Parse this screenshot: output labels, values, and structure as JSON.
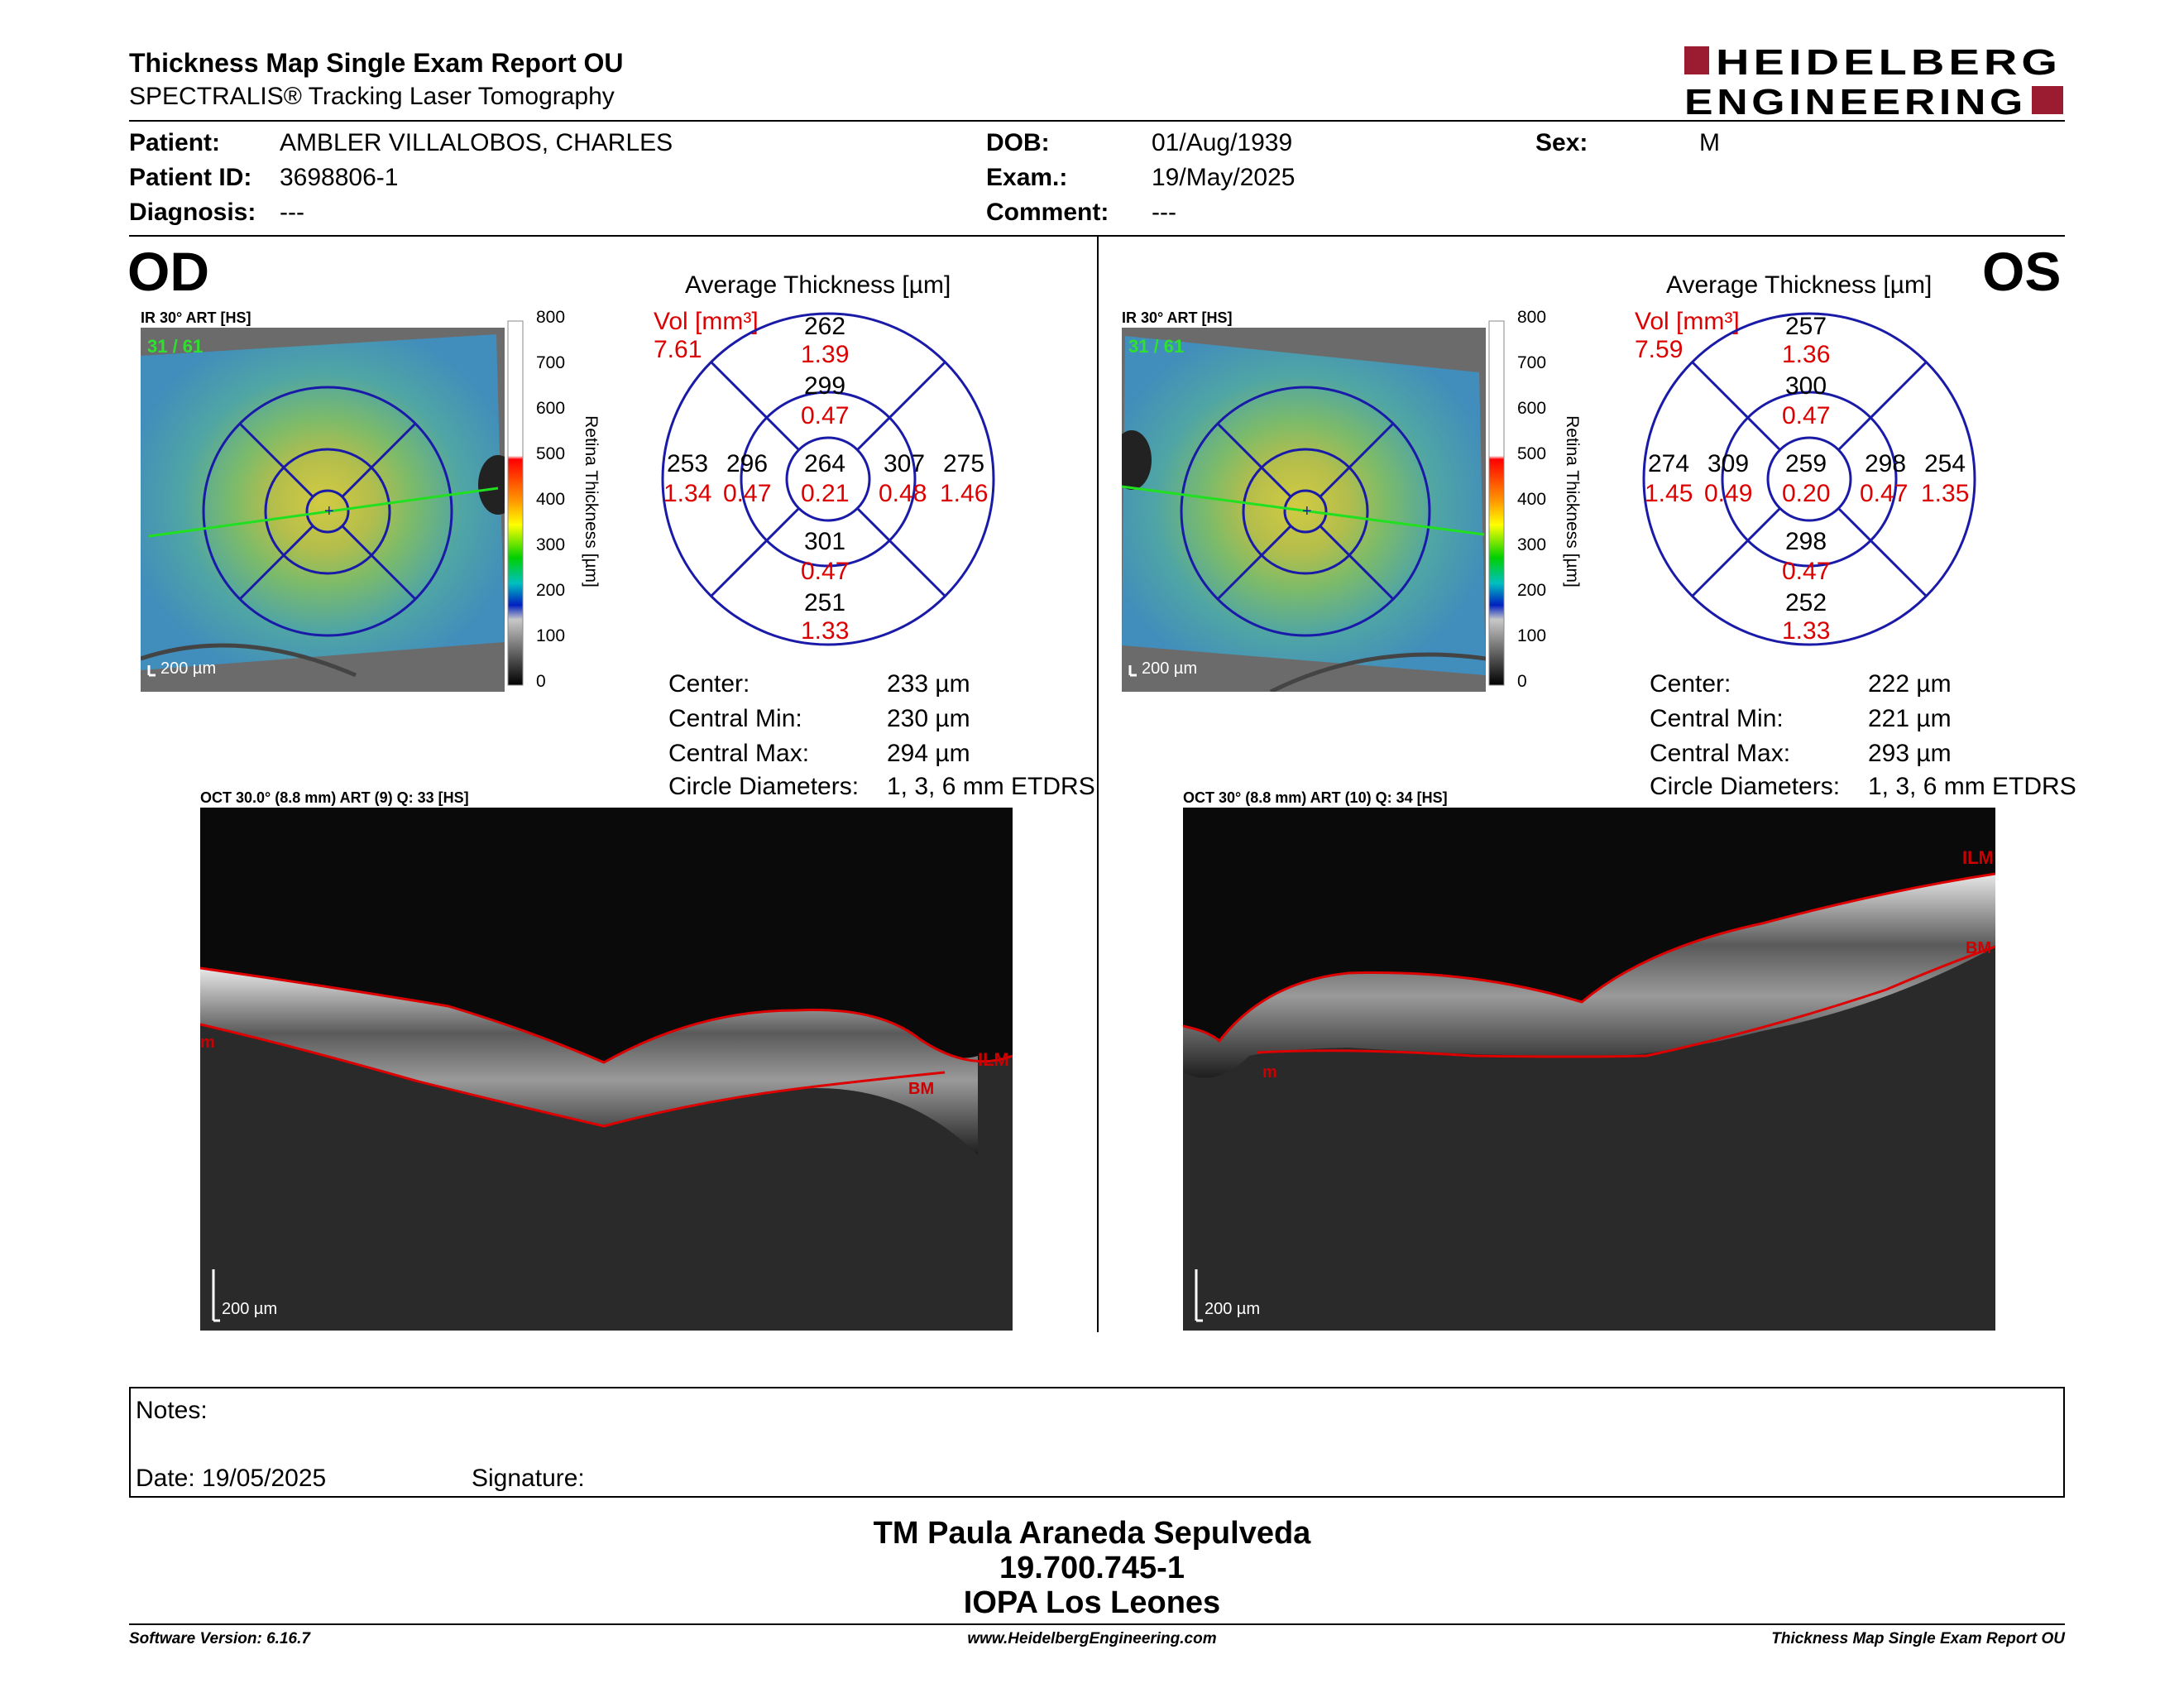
{
  "header": {
    "title": "Thickness Map Single Exam Report OU",
    "subtitle": "SPECTRALIS® Tracking Laser Tomography",
    "logo_line1": "HEIDELBERG",
    "logo_line2": "ENGINEERING",
    "brand_color": "#9b1b30"
  },
  "patient": {
    "patient_label": "Patient:",
    "patient_value": "AMBLER VILLALOBOS, CHARLES",
    "id_label": "Patient ID:",
    "id_value": "3698806-1",
    "diag_label": "Diagnosis:",
    "diag_value": "---",
    "dob_label": "DOB:",
    "dob_value": "01/Aug/1939",
    "exam_label": "Exam.:",
    "exam_value": "19/May/2025",
    "comment_label": "Comment:",
    "comment_value": "---",
    "sex_label": "Sex:",
    "sex_value": "M"
  },
  "colorbar": {
    "ticks": [
      "800",
      "700",
      "600",
      "500",
      "400",
      "300",
      "200",
      "100",
      "0"
    ],
    "label": "Retina Thickness [µm]"
  },
  "od": {
    "eye": "OD",
    "ir_caption": "IR 30° ART [HS]",
    "ir_art": "31 / 61",
    "scale": "200 µm",
    "avg_title": "Average Thickness [µm]",
    "vol_label": "Vol [mm³]",
    "vol_value": "7.61",
    "etdrs": {
      "center": {
        "t": "264",
        "v": "0.21"
      },
      "inner_sup": {
        "t": "299",
        "v": "0.47"
      },
      "inner_inf": {
        "t": "301",
        "v": "0.47"
      },
      "inner_left": {
        "t": "296",
        "v": "0.47"
      },
      "inner_right": {
        "t": "307",
        "v": "0.48"
      },
      "outer_sup": {
        "t": "262",
        "v": "1.39"
      },
      "outer_inf": {
        "t": "251",
        "v": "1.33"
      },
      "outer_left": {
        "t": "253",
        "v": "1.34"
      },
      "outer_right": {
        "t": "275",
        "v": "1.46"
      }
    },
    "stats": {
      "center_label": "Center:",
      "center_value": "233 µm",
      "min_label": "Central Min:",
      "min_value": "230 µm",
      "max_label": "Central Max:",
      "max_value": "294 µm",
      "diam_label": "Circle Diameters:",
      "diam_value": "1, 3, 6 mm ETDRS"
    },
    "oct_caption": "OCT 30.0° (8.8 mm) ART (9) Q: 33 [HS]",
    "oct_labels": {
      "ilm": "ILM",
      "bm": "BM",
      "m": "m"
    },
    "oct_scale": "200 µm"
  },
  "os": {
    "eye": "OS",
    "ir_caption": "IR 30° ART [HS]",
    "ir_art": "31 / 61",
    "scale": "200 µm",
    "avg_title": "Average Thickness [µm]",
    "vol_label": "Vol [mm³]",
    "vol_value": "7.59",
    "etdrs": {
      "center": {
        "t": "259",
        "v": "0.20"
      },
      "inner_sup": {
        "t": "300",
        "v": "0.47"
      },
      "inner_inf": {
        "t": "298",
        "v": "0.47"
      },
      "inner_left": {
        "t": "309",
        "v": "0.49"
      },
      "inner_right": {
        "t": "298",
        "v": "0.47"
      },
      "outer_sup": {
        "t": "257",
        "v": "1.36"
      },
      "outer_inf": {
        "t": "252",
        "v": "1.33"
      },
      "outer_left": {
        "t": "274",
        "v": "1.45"
      },
      "outer_right": {
        "t": "254",
        "v": "1.35"
      }
    },
    "stats": {
      "center_label": "Center:",
      "center_value": "222 µm",
      "min_label": "Central Min:",
      "min_value": "221 µm",
      "max_label": "Central Max:",
      "max_value": "293 µm",
      "diam_label": "Circle Diameters:",
      "diam_value": "1, 3, 6 mm ETDRS"
    },
    "oct_caption": "OCT 30° (8.8 mm) ART (10) Q: 34 [HS]",
    "oct_labels": {
      "ilm": "ILM",
      "bm": "BM",
      "m": "m"
    },
    "oct_scale": "200 µm"
  },
  "notes": {
    "notes_label": "Notes:",
    "date_label": "Date: 19/05/2025",
    "signature_label": "Signature:"
  },
  "signatory": {
    "name": "TM Paula Araneda Sepulveda",
    "id": "19.700.745-1",
    "institution": "IOPA Los Leones"
  },
  "footer": {
    "software": "Software Version: 6.16.7",
    "url": "www.HeidelbergEngineering.com",
    "report": "Thickness Map Single Exam Report OU"
  }
}
